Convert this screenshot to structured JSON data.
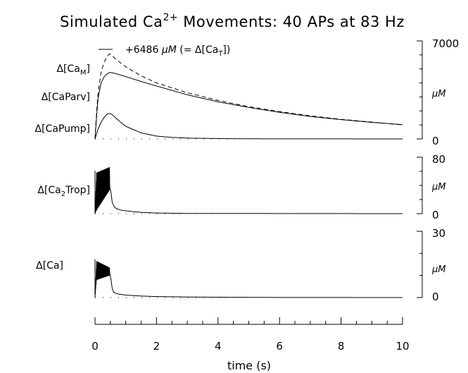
{
  "chart_data": {
    "type": "line",
    "title": {
      "prefix": "Simulated Ca",
      "superscript": "2+",
      "suffix": " Movements: 40 APs at 83 Hz"
    },
    "xlabel": "time (s)",
    "xlim": [
      0,
      10
    ],
    "xticks": [
      0,
      2,
      4,
      6,
      8,
      10
    ],
    "xtick_labels": [
      "0",
      "2",
      "4",
      "6",
      "8",
      "10"
    ],
    "stimulus": {
      "n_aps": 40,
      "rate_hz": 83,
      "train_duration_s": 0.48
    },
    "panels": [
      {
        "id": "panel-1",
        "unit": "µM",
        "ylim": [
          0,
          7000
        ],
        "ytick_labels": [
          "7000",
          "0"
        ],
        "annotation": {
          "prefix": "+6486 ",
          "unit": "µM",
          "mid": " (= ",
          "delta": "Δ[Ca",
          "sub": "T",
          "end": "])"
        },
        "series": [
          {
            "name": "Δ[CaM]",
            "label_main": "Δ[Ca",
            "label_sub": "M",
            "label_end": "]",
            "style": "dashed",
            "x": [
              0,
              0.05,
              0.1,
              0.2,
              0.3,
              0.4,
              0.48,
              0.55,
              0.7,
              1,
              1.5,
              2,
              3,
              4,
              5,
              6,
              7,
              8,
              9,
              10
            ],
            "y": [
              0,
              1900,
              3300,
              4800,
              5500,
              5900,
              6100,
              5950,
              5650,
              5150,
              4500,
              4000,
              3300,
              2750,
              2300,
              1950,
              1650,
              1400,
              1200,
              1000
            ]
          },
          {
            "name": "Δ[CaParv]",
            "label_main": "Δ[CaParv]",
            "label_sub": "",
            "label_end": "",
            "style": "solid",
            "x": [
              0,
              0.05,
              0.1,
              0.2,
              0.3,
              0.4,
              0.48,
              0.55,
              0.7,
              1,
              1.5,
              2,
              3,
              4,
              5,
              6,
              7,
              8,
              9,
              10
            ],
            "y": [
              0,
              1600,
              2900,
              4000,
              4450,
              4650,
              4750,
              4730,
              4650,
              4450,
              4100,
              3780,
              3150,
              2650,
              2250,
              1900,
              1600,
              1380,
              1180,
              1020
            ]
          },
          {
            "name": "Δ[CaPump]",
            "label_main": "Δ[CaPump]",
            "label_sub": "",
            "label_end": "",
            "style": "solid",
            "x": [
              0,
              0.05,
              0.1,
              0.2,
              0.3,
              0.4,
              0.5,
              0.6,
              0.8,
              1,
              1.5,
              2,
              2.5,
              3,
              4,
              5,
              10
            ],
            "y": [
              0,
              350,
              700,
              1200,
              1550,
              1780,
              1820,
              1650,
              1250,
              900,
              430,
              200,
              110,
              60,
              25,
              10,
              0
            ]
          }
        ]
      },
      {
        "id": "panel-2",
        "unit": "µM",
        "ylim": [
          0,
          80
        ],
        "ytick_labels": [
          "80",
          "0"
        ],
        "series": [
          {
            "name": "Δ[Ca2Trop]",
            "label_main": "Δ[Ca",
            "label_sub": "2",
            "label_end": "Trop]",
            "style": "oscillating",
            "osc_end_s": 0.48,
            "x": [
              0,
              0.05,
              0.48,
              0.52,
              0.56,
              0.62,
              0.7,
              0.85,
              1.0,
              1.3,
              1.6,
              2.0,
              3.0,
              10
            ],
            "y": [
              0,
              30,
              38,
              30,
              16,
              10,
              7,
              5,
              4,
              2.6,
              1.6,
              0.9,
              0.3,
              0
            ],
            "osc_low": [
              0,
              5,
              34
            ],
            "osc_high": [
              0,
              58,
              66
            ]
          }
        ]
      },
      {
        "id": "panel-3",
        "unit": "µM",
        "ylim": [
          0,
          30
        ],
        "ytick_labels": [
          "30",
          "0"
        ],
        "series": [
          {
            "name": "Δ[Ca]",
            "label_main": "Δ[Ca]",
            "label_sub": "",
            "label_end": "",
            "style": "oscillating",
            "osc_end_s": 0.48,
            "x": [
              0,
              0.05,
              0.48,
              0.52,
              0.57,
              0.62,
              0.75,
              1.0,
              1.5,
              2.0,
              3.0,
              4.0,
              6.0,
              10
            ],
            "y": [
              0,
              10,
              11,
              8,
              3.2,
              2.2,
              1.6,
              1.1,
              0.7,
              0.45,
              0.25,
              0.15,
              0.05,
              0
            ],
            "osc_low": [
              0,
              8,
              10
            ],
            "osc_high": [
              0,
              16.5,
              13.5
            ]
          }
        ]
      }
    ],
    "grid": false,
    "legend": "none"
  }
}
